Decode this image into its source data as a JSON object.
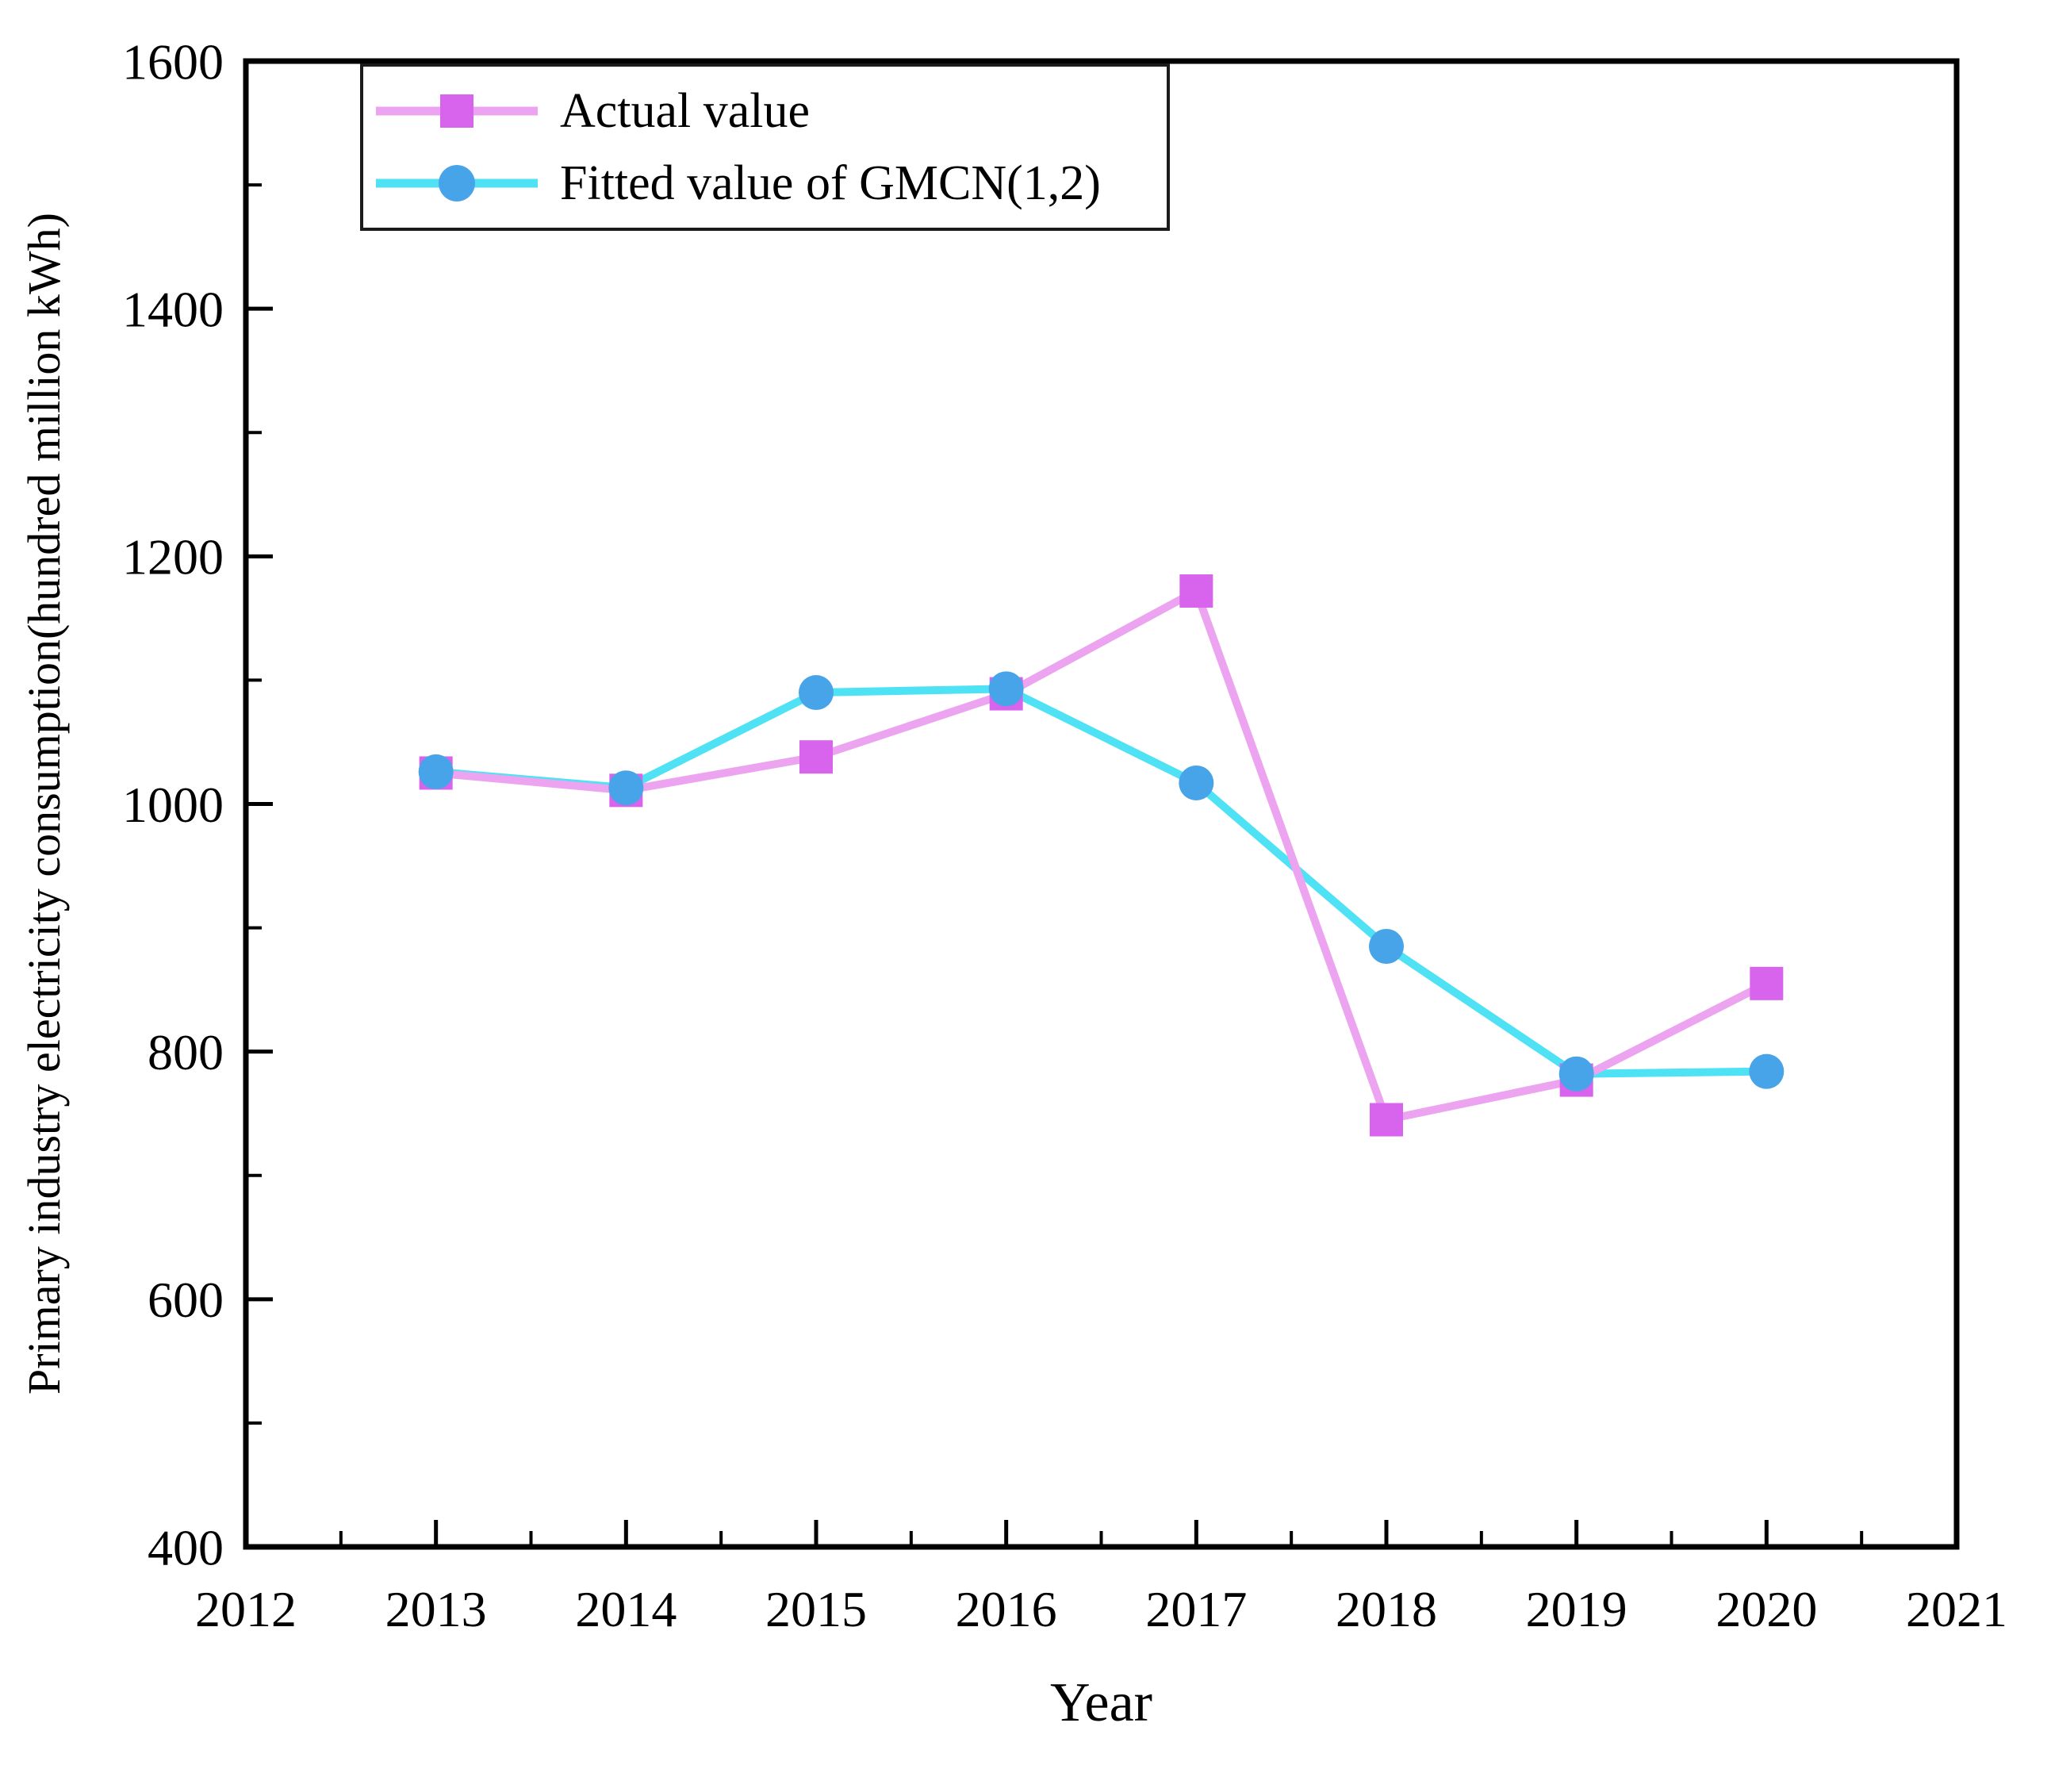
{
  "figure": {
    "background": "#ffffff",
    "axis_color": "#000000",
    "text_color": "#000000"
  },
  "chart_data": {
    "type": "line",
    "title": "",
    "xlabel": "Year",
    "ylabel": "Primary industry electricity consumption(hundred million kWh)",
    "x": [
      2013,
      2014,
      2015,
      2016,
      2017,
      2018,
      2019,
      2020
    ],
    "series": [
      {
        "name": "Actual value",
        "values": [
          1025,
          1011,
          1038,
          1089,
          1172,
          745,
          777,
          855
        ],
        "line_color": "#eda4f0",
        "marker_color": "#d863ec",
        "marker": "square"
      },
      {
        "name": "Fitted value of GMCN(1,2)",
        "values": [
          1026,
          1013,
          1090,
          1093,
          1017,
          885,
          782,
          784
        ],
        "line_color": "#4ee2f4",
        "marker_color": "#47a4e8",
        "marker": "circle"
      }
    ],
    "xlim": [
      2012,
      2021
    ],
    "ylim": [
      400,
      1600
    ],
    "x_ticks": [
      2012,
      2013,
      2014,
      2015,
      2016,
      2017,
      2018,
      2019,
      2020,
      2021
    ],
    "y_ticks": [
      400,
      600,
      800,
      1000,
      1200,
      1400,
      1600
    ],
    "x_minor_step": 0.5,
    "y_minor_step": 100,
    "grid": false,
    "legend_position": "top-left"
  }
}
